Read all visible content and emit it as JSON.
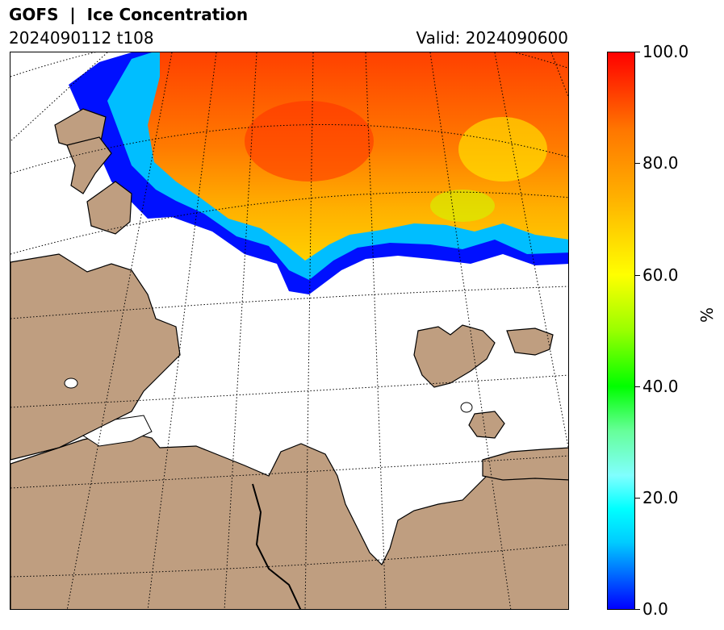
{
  "header": {
    "title": "GOFS  |  Ice Concentration",
    "run": "2024090112 t108",
    "valid": "Valid: 2024090600"
  },
  "colorbar": {
    "ticks": [
      "100.0",
      "80.0",
      "60.0",
      "40.0",
      "20.0",
      "0.0"
    ],
    "unit": "%",
    "range": [
      0,
      100
    ],
    "colors": [
      "#0000ff",
      "#00ffff",
      "#00ff00",
      "#ffff00",
      "#ff7700",
      "#ff0000"
    ]
  },
  "map": {
    "land_color": "#bf9e80",
    "ocean_color": "#ffffff",
    "graticule": "dotted"
  }
}
